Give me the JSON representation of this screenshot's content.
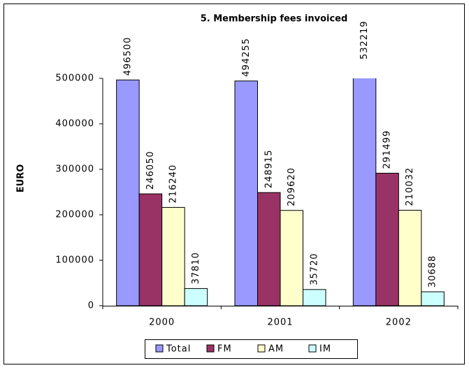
{
  "chart_data": {
    "type": "bar",
    "title": "5. Membership fees invoiced",
    "y_label": "EURO",
    "categories": [
      "2000",
      "2001",
      "2002"
    ],
    "series": [
      {
        "name": "Total",
        "color": "#9999ff",
        "values": [
          496500,
          494255,
          532219
        ]
      },
      {
        "name": "FM",
        "color": "#993366",
        "values": [
          246050,
          248915,
          291499
        ]
      },
      {
        "name": "AM",
        "color": "#ffffcc",
        "values": [
          216240,
          209620,
          210032
        ]
      },
      {
        "name": "IM",
        "color": "#ccffff",
        "values": [
          37810,
          35720,
          30688
        ]
      }
    ],
    "ylim": [
      0,
      500000
    ],
    "yticks": [
      0,
      100000,
      200000,
      300000,
      400000,
      500000
    ],
    "legend": "bottom"
  }
}
